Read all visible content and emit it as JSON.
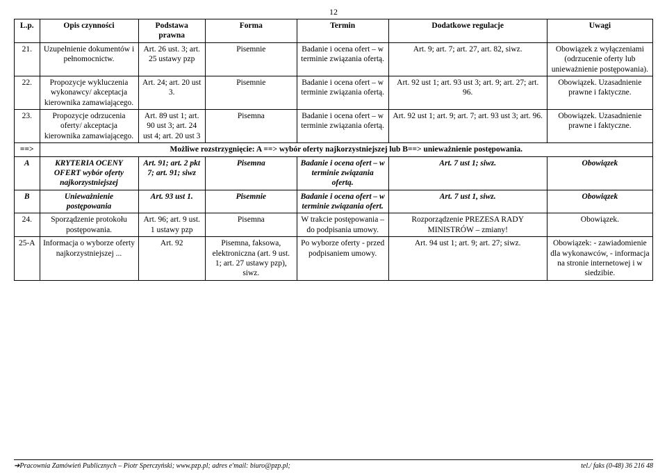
{
  "page_number": "12",
  "header": {
    "lp": "L.p.",
    "opis": "Opis czynności",
    "podstawa": "Podstawa prawna",
    "forma": "Forma",
    "termin": "Termin",
    "dodatkowe": "Dodatkowe regulacje",
    "uwagi": "Uwagi"
  },
  "rows": [
    {
      "lp": "21.",
      "opis": "Uzupełnienie dokumentów i pełnomocnictw.",
      "podstawa": "Art. 26 ust. 3; art. 25 ustawy pzp",
      "forma": "Pisemnie",
      "termin": "Badanie i ocena ofert – w terminie związania ofertą.",
      "dodatkowe": "Art. 9; art. 7; art. 27, art. 82, siwz.",
      "uwagi": "Obowiązek z wyłączeniami (odrzucenie oferty lub unieważnienie postępowania)."
    },
    {
      "lp": "22.",
      "opis": "Propozycje wykluczenia wykonawcy/ akceptacja kierownika zamawiającego.",
      "podstawa": "Art. 24; art. 20 ust 3.",
      "forma": "Pisemnie",
      "termin": "Badanie i ocena ofert – w terminie związania ofertą.",
      "dodatkowe": "Art. 92 ust 1; art. 93 ust 3; art. 9; art. 27; art. 96.",
      "uwagi": "Obowiązek. Uzasadnienie prawne i faktyczne."
    },
    {
      "lp": "23.",
      "opis": "Propozycje odrzucenia oferty/ akceptacja kierownika zamawiającego.",
      "podstawa": "Art. 89 ust 1; art. 90 ust 3; art. 24 ust 4; art. 20 ust 3",
      "forma": "Pisemna",
      "termin": "Badanie i ocena ofert – w terminie związania ofertą.",
      "dodatkowe": "Art. 92 ust 1; art. 9; art. 7; art. 93 ust 3; art. 96.",
      "uwagi": "Obowiązek. Uzasadnienie prawne i faktyczne."
    }
  ],
  "separator": {
    "lp": "==>",
    "text": "Możliwe rozstrzygnięcie: A ==> wybór oferty najkorzystniejszej  lub B==> unieważnienie postępowania."
  },
  "rows2": [
    {
      "lp": "A",
      "opis": "KRYTERIA OCENY OFERT wybór oferty najkorzystniejszej",
      "podstawa": "Art. 91; art. 2 pkt 7; art. 91; siwz",
      "forma": "Pisemna",
      "termin": "Badanie i ocena ofert – w terminie związania ofertą.",
      "dodatkowe": "Art. 7 ust 1; siwz.",
      "uwagi": "Obowiązek",
      "italic": true,
      "bold": true
    },
    {
      "lp": "B",
      "opis": "Unieważnienie postępowania",
      "podstawa": "Art. 93 ust 1.",
      "forma": "Pisemnie",
      "termin": "Badanie i ocena ofert – w terminie związania ofert.",
      "dodatkowe": "Art. 7 ust 1, siwz.",
      "uwagi": "Obowiązek",
      "italic": true,
      "bold": true
    },
    {
      "lp": "24.",
      "opis": "Sporządzenie protokołu postępowania.",
      "podstawa": "Art. 96; art. 9 ust. 1 ustawy pzp",
      "forma": "Pisemna",
      "termin": "W trakcie postępowania – do podpisania umowy.",
      "dodatkowe": "Rozporządzenie PREZESA RADY MINISTRÓW – zmiany!",
      "uwagi": "Obowiązek."
    },
    {
      "lp": "25-A",
      "opis": "Informacja o wyborze oferty najkorzystniejszej ...",
      "podstawa": "Art. 92",
      "forma": "Pisemna, faksowa, elektroniczna (art. 9 ust. 1; art. 27 ustawy pzp), siwz.",
      "termin": "Po wyborze oferty - przed podpisaniem umowy.",
      "dodatkowe": "Art. 94 ust 1; art. 9; art. 27; siwz.",
      "uwagi": "Obowiązek: - zawiadomienie dla wykonawców, - informacja na stronie internetowej i w siedzibie."
    }
  ],
  "footer": {
    "left": "➔Pracownia Zamówień Publicznych – Piotr Sperczyński; www.pzp.pl;  adres e'mail: biuro@pzp.pl;",
    "right": "tel./ faks (0-48) 36 216 48"
  }
}
